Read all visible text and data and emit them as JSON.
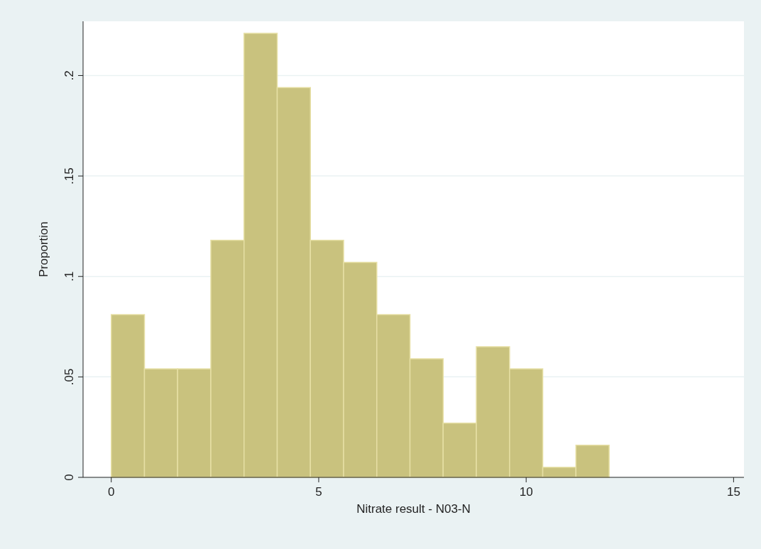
{
  "chart_data": {
    "type": "histogram",
    "xlabel": "Nitrate result - N03-N",
    "ylabel": "Proportion",
    "bins": [
      0,
      0.8,
      1.6,
      2.4,
      3.2,
      4,
      4.8,
      5.6,
      6.4,
      7.2,
      8,
      8.8,
      9.6,
      10.4,
      11.2,
      12
    ],
    "values": [
      0.081,
      0.054,
      0.054,
      0.118,
      0.221,
      0.194,
      0.118,
      0.107,
      0.081,
      0.059,
      0.027,
      0.065,
      0.054,
      0.005,
      0.016
    ],
    "color": "#c9c27e",
    "xlim": [
      -0.68,
      15.25
    ],
    "xticks": [
      0,
      5,
      10,
      15
    ],
    "ylim": [
      0,
      0.227
    ],
    "yticks": [
      {
        "value": 0,
        "label": "0"
      },
      {
        "value": 0.05,
        "label": ".05"
      },
      {
        "value": 0.1,
        "label": ".1"
      },
      {
        "value": 0.15,
        "label": ".15"
      },
      {
        "value": 0.2,
        "label": ".2"
      }
    ],
    "grid": "y"
  }
}
